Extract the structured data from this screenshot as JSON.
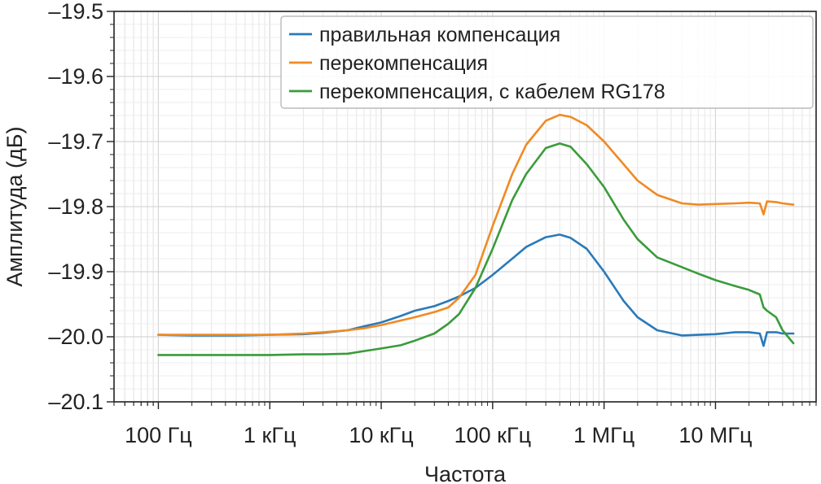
{
  "chart_data": {
    "type": "line",
    "title": "",
    "xlabel": "Частота",
    "ylabel": "Амплитуда (дБ)",
    "x_scale": "log",
    "xlim": [
      40,
      80000000
    ],
    "ylim": [
      -20.1,
      -19.5
    ],
    "grid": true,
    "legend_position": "top-right",
    "x_ticks": [
      {
        "value": 100,
        "label": "100 Гц"
      },
      {
        "value": 1000,
        "label": "1 кГц"
      },
      {
        "value": 10000,
        "label": "10 кГц"
      },
      {
        "value": 100000,
        "label": "100 кГц"
      },
      {
        "value": 1000000,
        "label": "1 МГц"
      },
      {
        "value": 10000000,
        "label": "10 МГц"
      }
    ],
    "y_ticks": [
      {
        "value": -19.5,
        "label": "–19.5"
      },
      {
        "value": -19.6,
        "label": "–19.6"
      },
      {
        "value": -19.7,
        "label": "–19.7"
      },
      {
        "value": -19.8,
        "label": "–19.8"
      },
      {
        "value": -19.9,
        "label": "–19.9"
      },
      {
        "value": -20.0,
        "label": "–20.0"
      },
      {
        "value": -20.1,
        "label": "–20.1"
      }
    ],
    "series": [
      {
        "name": "правильная компенсация",
        "color": "#2a7ab9",
        "points": [
          [
            100,
            -19.997
          ],
          [
            200,
            -19.998
          ],
          [
            500,
            -19.998
          ],
          [
            1000,
            -19.997
          ],
          [
            2000,
            -19.996
          ],
          [
            3000,
            -19.994
          ],
          [
            5000,
            -19.99
          ],
          [
            7000,
            -19.984
          ],
          [
            10000,
            -19.978
          ],
          [
            15000,
            -19.968
          ],
          [
            20000,
            -19.96
          ],
          [
            30000,
            -19.953
          ],
          [
            40000,
            -19.945
          ],
          [
            50000,
            -19.938
          ],
          [
            70000,
            -19.925
          ],
          [
            100000,
            -19.905
          ],
          [
            150000,
            -19.88
          ],
          [
            200000,
            -19.862
          ],
          [
            300000,
            -19.847
          ],
          [
            400000,
            -19.843
          ],
          [
            500000,
            -19.848
          ],
          [
            700000,
            -19.865
          ],
          [
            1000000,
            -19.9
          ],
          [
            1500000,
            -19.945
          ],
          [
            2000000,
            -19.97
          ],
          [
            3000000,
            -19.99
          ],
          [
            5000000,
            -19.998
          ],
          [
            7000000,
            -19.997
          ],
          [
            10000000,
            -19.996
          ],
          [
            15000000,
            -19.993
          ],
          [
            20000000,
            -19.993
          ],
          [
            25000000,
            -19.995
          ],
          [
            27000000,
            -20.014
          ],
          [
            29000000,
            -19.993
          ],
          [
            35000000,
            -19.993
          ],
          [
            40000000,
            -19.995
          ],
          [
            50000000,
            -19.995
          ]
        ]
      },
      {
        "name": "перекомпенсация",
        "color": "#f08a23",
        "points": [
          [
            100,
            -19.997
          ],
          [
            200,
            -19.997
          ],
          [
            500,
            -19.997
          ],
          [
            1000,
            -19.997
          ],
          [
            2000,
            -19.995
          ],
          [
            3000,
            -19.993
          ],
          [
            5000,
            -19.99
          ],
          [
            7000,
            -19.987
          ],
          [
            10000,
            -19.982
          ],
          [
            15000,
            -19.975
          ],
          [
            20000,
            -19.97
          ],
          [
            30000,
            -19.962
          ],
          [
            40000,
            -19.955
          ],
          [
            50000,
            -19.94
          ],
          [
            70000,
            -19.905
          ],
          [
            100000,
            -19.83
          ],
          [
            150000,
            -19.75
          ],
          [
            200000,
            -19.705
          ],
          [
            300000,
            -19.668
          ],
          [
            400000,
            -19.659
          ],
          [
            500000,
            -19.662
          ],
          [
            700000,
            -19.675
          ],
          [
            1000000,
            -19.7
          ],
          [
            1500000,
            -19.735
          ],
          [
            2000000,
            -19.76
          ],
          [
            3000000,
            -19.782
          ],
          [
            5000000,
            -19.795
          ],
          [
            7000000,
            -19.797
          ],
          [
            10000000,
            -19.796
          ],
          [
            15000000,
            -19.795
          ],
          [
            20000000,
            -19.794
          ],
          [
            25000000,
            -19.795
          ],
          [
            27000000,
            -19.812
          ],
          [
            29000000,
            -19.792
          ],
          [
            35000000,
            -19.793
          ],
          [
            40000000,
            -19.795
          ],
          [
            50000000,
            -19.797
          ]
        ]
      },
      {
        "name": "перекомпенсация, с кабелем RG178",
        "color": "#3a9b3a",
        "points": [
          [
            100,
            -20.028
          ],
          [
            200,
            -20.028
          ],
          [
            500,
            -20.028
          ],
          [
            1000,
            -20.028
          ],
          [
            2000,
            -20.027
          ],
          [
            3000,
            -20.027
          ],
          [
            5000,
            -20.026
          ],
          [
            7000,
            -20.022
          ],
          [
            10000,
            -20.018
          ],
          [
            15000,
            -20.013
          ],
          [
            20000,
            -20.006
          ],
          [
            30000,
            -19.995
          ],
          [
            40000,
            -19.98
          ],
          [
            50000,
            -19.965
          ],
          [
            70000,
            -19.925
          ],
          [
            100000,
            -19.865
          ],
          [
            150000,
            -19.79
          ],
          [
            200000,
            -19.75
          ],
          [
            300000,
            -19.71
          ],
          [
            400000,
            -19.703
          ],
          [
            500000,
            -19.708
          ],
          [
            700000,
            -19.735
          ],
          [
            1000000,
            -19.77
          ],
          [
            1500000,
            -19.82
          ],
          [
            2000000,
            -19.85
          ],
          [
            3000000,
            -19.878
          ],
          [
            5000000,
            -19.893
          ],
          [
            7000000,
            -19.903
          ],
          [
            10000000,
            -19.913
          ],
          [
            15000000,
            -19.922
          ],
          [
            20000000,
            -19.928
          ],
          [
            25000000,
            -19.935
          ],
          [
            27000000,
            -19.955
          ],
          [
            29000000,
            -19.96
          ],
          [
            35000000,
            -19.97
          ],
          [
            40000000,
            -19.99
          ],
          [
            50000000,
            -20.01
          ]
        ]
      }
    ]
  }
}
